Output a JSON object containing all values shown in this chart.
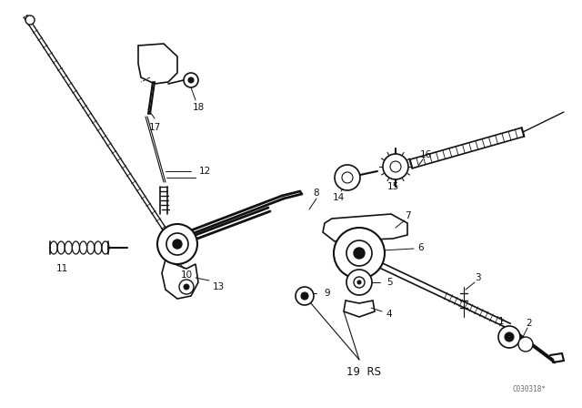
{
  "bg_color": "#ffffff",
  "line_color": "#111111",
  "text_color": "#111111",
  "watermark": "C030318*",
  "figsize": [
    6.4,
    4.48
  ],
  "dpi": 100
}
